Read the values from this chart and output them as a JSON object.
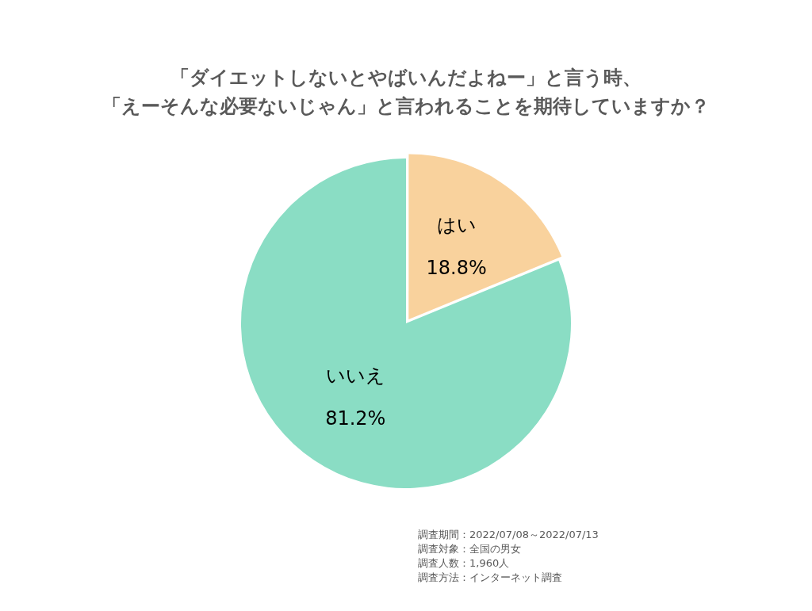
{
  "chart_data": {
    "type": "pie",
    "title": "「ダイエットしないとやばいんだよねー」と言う時、「えーそんな必要ないじゃん」と言われることを期待していますか？",
    "categories": [
      "はい",
      "いいえ"
    ],
    "values": [
      18.8,
      81.2
    ],
    "colors": [
      "#f9d29d",
      "#8addc4"
    ],
    "value_labels": [
      "18.8%",
      "81.2%"
    ],
    "annotations": [
      "調査期間：2022/07/08～2022/07/13",
      "調査対象：全国の男女",
      "調査人数：1,960人",
      "調査方法：インターネット調査"
    ]
  }
}
